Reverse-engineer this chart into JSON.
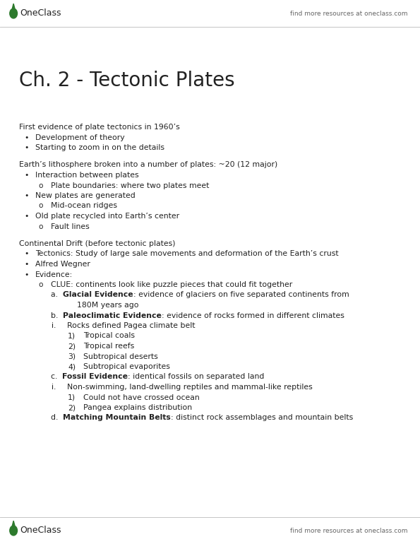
{
  "bg_color": "#ffffff",
  "text_color": "#222222",
  "gray_text": "#666666",
  "green_color": "#2d7a2d",
  "title": "Ch. 2 - Tectonic Plates",
  "find_more": "find more resources at oneclass.com",
  "oneclass": "OneClass",
  "figsize": [
    5.95,
    7.7
  ],
  "dpi": 100,
  "content_lines": [
    {
      "type": "normal",
      "text": "First evidence of plate tectonics in 1960’s",
      "indent": 0
    },
    {
      "type": "bullet",
      "text": "Development of theory",
      "indent": 1
    },
    {
      "type": "bullet",
      "text": "Starting to zoom in on the details",
      "indent": 1
    },
    {
      "type": "blank"
    },
    {
      "type": "normal",
      "text": "Earth’s lithosphere broken into a number of plates: ~20 (12 major)",
      "indent": 0
    },
    {
      "type": "bullet",
      "text": "Interaction between plates",
      "indent": 1
    },
    {
      "type": "circle",
      "text": "Plate boundaries: where two plates meet",
      "indent": 2
    },
    {
      "type": "bullet",
      "text": "New plates are generated",
      "indent": 1
    },
    {
      "type": "circle",
      "text": "Mid-ocean ridges",
      "indent": 2
    },
    {
      "type": "bullet",
      "text": "Old plate recycled into Earth’s center",
      "indent": 1
    },
    {
      "type": "circle",
      "text": "Fault lines",
      "indent": 2
    },
    {
      "type": "blank"
    },
    {
      "type": "normal",
      "text": "Continental Drift (before tectonic plates)",
      "indent": 0
    },
    {
      "type": "bullet",
      "text": "Tectonics: Study of large sale movements and deformation of the Earth’s crust",
      "indent": 1
    },
    {
      "type": "bullet",
      "text": "Alfred Wegner",
      "indent": 1
    },
    {
      "type": "bullet",
      "text": "Evidence:",
      "indent": 1
    },
    {
      "type": "circle",
      "text": "CLUE: continents look like puzzle pieces that could fit together",
      "indent": 2
    },
    {
      "type": "alpha",
      "label": "a.",
      "bold": "Glacial Evidence",
      "rest": ": evidence of glaciers on five separated continents from",
      "indent": 2
    },
    {
      "type": "continuation",
      "text": "180M years ago",
      "indent": 3
    },
    {
      "type": "alpha",
      "label": "b.",
      "bold": "Paleoclimatic Evidence",
      "rest": ": evidence of rocks formed in different climates",
      "indent": 2
    },
    {
      "type": "roman",
      "text": "Rocks defined Pagea climate belt",
      "indent": 3
    },
    {
      "type": "numbered",
      "num": "1)",
      "text": "Tropical coals",
      "indent": 4
    },
    {
      "type": "numbered",
      "num": "2)",
      "text": "Tropical reefs",
      "indent": 4
    },
    {
      "type": "numbered",
      "num": "3)",
      "text": "Subtropical deserts",
      "indent": 4
    },
    {
      "type": "numbered",
      "num": "4)",
      "text": "Subtropical evaporites",
      "indent": 4
    },
    {
      "type": "alpha",
      "label": "c.",
      "bold": "Fossil Evidence",
      "rest": ": identical fossils on separated land",
      "indent": 2
    },
    {
      "type": "roman",
      "text": "Non-swimming, land-dwelling reptiles and mammal-like reptiles",
      "indent": 3
    },
    {
      "type": "numbered",
      "num": "1)",
      "text": "Could not have crossed ocean",
      "indent": 4
    },
    {
      "type": "numbered",
      "num": "2)",
      "text": "Pangea explains distribution",
      "indent": 4
    },
    {
      "type": "alpha",
      "label": "d.",
      "bold": "Matching Mountain Belts",
      "rest": ": distinct rock assemblages and mountain belts",
      "indent": 2
    }
  ]
}
